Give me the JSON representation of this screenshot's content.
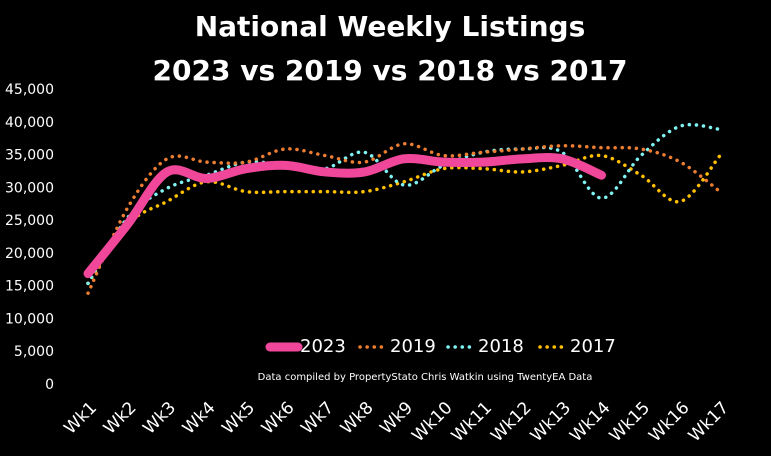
{
  "chart_data": {
    "type": "line",
    "title": "National Weekly Listings",
    "subtitle": "2023 vs 2019 vs 2018 vs 2017",
    "annotation": "Data compiled by PropertyStato Chris Watkin using TwentyEA Data",
    "categories": [
      "Wk1",
      "Wk2",
      "Wk3",
      "Wk4",
      "Wk5",
      "Wk6",
      "Wk7",
      "Wk8",
      "Wk9",
      "Wk10",
      "Wk11",
      "Wk12",
      "Wk13",
      "Wk14",
      "Wk15",
      "Wk16",
      "Wk17"
    ],
    "series": [
      {
        "name": "2023",
        "color": "#f0479a",
        "style": "solid",
        "values": [
          17000,
          24500,
          32500,
          31500,
          33000,
          33500,
          32500,
          32500,
          34500,
          34000,
          34000,
          34500,
          34500,
          32000,
          null,
          null,
          null
        ]
      },
      {
        "name": "2019",
        "color": "#ed7d31",
        "style": "dotted",
        "values": [
          14000,
          27000,
          34500,
          34000,
          34000,
          36000,
          35000,
          34000,
          36800,
          35000,
          35500,
          36000,
          36500,
          36200,
          36000,
          34000,
          29500
        ]
      },
      {
        "name": "2018",
        "color": "#7ff2f2",
        "style": "dotted",
        "values": [
          15500,
          25500,
          30000,
          32000,
          34000,
          33500,
          33000,
          35500,
          30500,
          33500,
          35500,
          36000,
          35500,
          28500,
          35000,
          39500,
          39000
        ]
      },
      {
        "name": "2017",
        "color": "#ffc000",
        "style": "dotted",
        "values": [
          15500,
          24500,
          28000,
          31000,
          29500,
          29500,
          29500,
          29500,
          31000,
          33000,
          33000,
          32500,
          33500,
          35000,
          32000,
          28000,
          35000
        ]
      }
    ],
    "ylim": [
      0,
      45000
    ],
    "yticks": [
      0,
      {
        "value": 5000,
        "label": "5,000"
      },
      {
        "value": 10000,
        "label": "10,000"
      },
      {
        "value": 15000,
        "label": "15,000"
      },
      {
        "value": 20000,
        "label": "20,000"
      },
      {
        "value": 25000,
        "label": "25,000"
      },
      {
        "value": 30000,
        "label": "30,000"
      },
      {
        "value": 35000,
        "label": "35,000"
      },
      {
        "value": 40000,
        "label": "40,000"
      },
      {
        "value": 45000,
        "label": "45,000"
      }
    ],
    "grid": false,
    "legend": "bottom",
    "background": "#000000"
  }
}
